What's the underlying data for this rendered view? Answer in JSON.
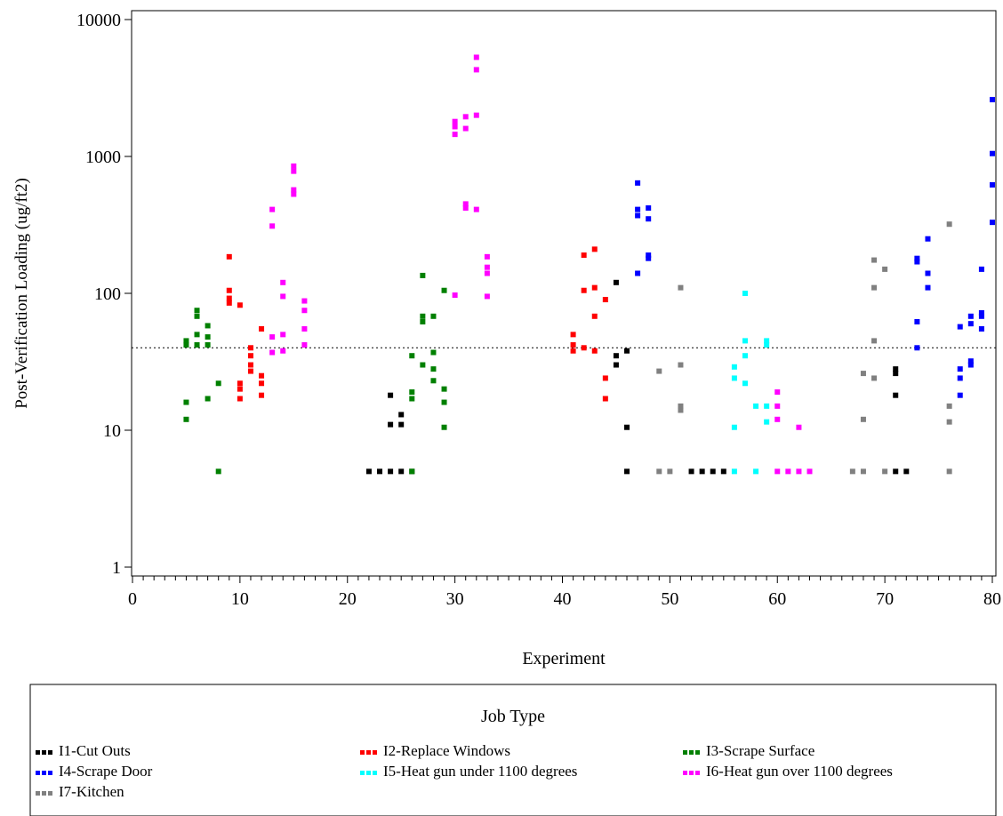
{
  "chart_data": {
    "type": "scatter",
    "title": "",
    "xlabel": "Experiment",
    "ylabel": "Post-Verification Loading (ug/ft2)",
    "xlim": [
      0,
      80
    ],
    "ylim": [
      1,
      10000
    ],
    "yscale": "log",
    "x_ticks": [
      "0",
      "10",
      "20",
      "30",
      "40",
      "50",
      "60",
      "70",
      "80"
    ],
    "y_ticks": [
      "1",
      "10",
      "100",
      "1000",
      "10000"
    ],
    "grid": false,
    "reference_line": {
      "y": 40,
      "style": "dotted"
    },
    "legend": {
      "title": "Job Type",
      "placement": "bottom"
    },
    "series": [
      {
        "name": "I1-Cut Outs",
        "color": "#000000",
        "points": [
          [
            22,
            5
          ],
          [
            23,
            5
          ],
          [
            24,
            5
          ],
          [
            25,
            5
          ],
          [
            26,
            5
          ],
          [
            24,
            18
          ],
          [
            24,
            11
          ],
          [
            25,
            13
          ],
          [
            25,
            11
          ],
          [
            45,
            120
          ],
          [
            45,
            35
          ],
          [
            45,
            30
          ],
          [
            46,
            38
          ],
          [
            46,
            10.5
          ],
          [
            46,
            5
          ],
          [
            52,
            5
          ],
          [
            53,
            5
          ],
          [
            54,
            5
          ],
          [
            55,
            5
          ],
          [
            71,
            28
          ],
          [
            71,
            26
          ],
          [
            71,
            18
          ],
          [
            71,
            5
          ],
          [
            72,
            5
          ]
        ]
      },
      {
        "name": "I2-Replace Windows",
        "color": "#ff0000",
        "points": [
          [
            9,
            185
          ],
          [
            9,
            105
          ],
          [
            9,
            92
          ],
          [
            9,
            85
          ],
          [
            10,
            82
          ],
          [
            10,
            22
          ],
          [
            10,
            20
          ],
          [
            10,
            17
          ],
          [
            11,
            40
          ],
          [
            11,
            35
          ],
          [
            11,
            30
          ],
          [
            11,
            27
          ],
          [
            12,
            55
          ],
          [
            12,
            25
          ],
          [
            12,
            22
          ],
          [
            12,
            18
          ],
          [
            41,
            50
          ],
          [
            41,
            42
          ],
          [
            41,
            38
          ],
          [
            42,
            190
          ],
          [
            42,
            105
          ],
          [
            42,
            40
          ],
          [
            43,
            210
          ],
          [
            43,
            110
          ],
          [
            43,
            68
          ],
          [
            43,
            38
          ],
          [
            44,
            90
          ],
          [
            44,
            24
          ],
          [
            44,
            17
          ]
        ]
      },
      {
        "name": "I3-Scrape Surface",
        "color": "#008000",
        "points": [
          [
            5,
            45
          ],
          [
            5,
            42
          ],
          [
            5,
            16
          ],
          [
            5,
            12
          ],
          [
            6,
            75
          ],
          [
            6,
            68
          ],
          [
            6,
            50
          ],
          [
            6,
            42
          ],
          [
            7,
            58
          ],
          [
            7,
            48
          ],
          [
            7,
            42
          ],
          [
            7,
            17
          ],
          [
            8,
            22
          ],
          [
            8,
            5
          ],
          [
            26,
            35
          ],
          [
            26,
            19
          ],
          [
            26,
            17
          ],
          [
            26,
            5
          ],
          [
            27,
            135
          ],
          [
            27,
            68
          ],
          [
            27,
            62
          ],
          [
            27,
            30
          ],
          [
            28,
            68
          ],
          [
            28,
            37
          ],
          [
            28,
            28
          ],
          [
            28,
            23
          ],
          [
            29,
            105
          ],
          [
            29,
            20
          ],
          [
            29,
            16
          ],
          [
            29,
            10.5
          ]
        ]
      },
      {
        "name": "I4-Scrape Door",
        "color": "#0000ff",
        "points": [
          [
            47,
            640
          ],
          [
            47,
            410
          ],
          [
            47,
            370
          ],
          [
            47,
            140
          ],
          [
            48,
            420
          ],
          [
            48,
            350
          ],
          [
            48,
            190
          ],
          [
            48,
            180
          ],
          [
            73,
            180
          ],
          [
            73,
            170
          ],
          [
            73,
            62
          ],
          [
            73,
            40
          ],
          [
            74,
            250
          ],
          [
            74,
            140
          ],
          [
            74,
            110
          ],
          [
            77,
            57
          ],
          [
            77,
            28
          ],
          [
            77,
            24
          ],
          [
            77,
            18
          ],
          [
            78,
            68
          ],
          [
            78,
            60
          ],
          [
            78,
            32
          ],
          [
            78,
            30
          ],
          [
            79,
            150
          ],
          [
            79,
            72
          ],
          [
            79,
            68
          ],
          [
            79,
            55
          ],
          [
            80,
            2600
          ],
          [
            80,
            1050
          ],
          [
            80,
            620
          ],
          [
            80,
            330
          ]
        ]
      },
      {
        "name": "I5-Heat gun under 1100 degrees",
        "color": "#00ffff",
        "points": [
          [
            56,
            29
          ],
          [
            56,
            24
          ],
          [
            56,
            10.5
          ],
          [
            56,
            5
          ],
          [
            57,
            100
          ],
          [
            57,
            45
          ],
          [
            57,
            35
          ],
          [
            57,
            22
          ],
          [
            58,
            15
          ],
          [
            58,
            5
          ],
          [
            59,
            45
          ],
          [
            59,
            42
          ],
          [
            59,
            15
          ],
          [
            59,
            11.5
          ]
        ]
      },
      {
        "name": "I6-Heat gun over 1100 degrees",
        "color": "#ff00ff",
        "points": [
          [
            13,
            410
          ],
          [
            13,
            310
          ],
          [
            13,
            48
          ],
          [
            13,
            37
          ],
          [
            14,
            120
          ],
          [
            14,
            95
          ],
          [
            14,
            50
          ],
          [
            14,
            38
          ],
          [
            15,
            850
          ],
          [
            15,
            780
          ],
          [
            15,
            570
          ],
          [
            15,
            530
          ],
          [
            16,
            88
          ],
          [
            16,
            75
          ],
          [
            16,
            55
          ],
          [
            16,
            42
          ],
          [
            30,
            1800
          ],
          [
            30,
            1650
          ],
          [
            30,
            1450
          ],
          [
            30,
            97
          ],
          [
            31,
            1950
          ],
          [
            31,
            1600
          ],
          [
            31,
            450
          ],
          [
            31,
            420
          ],
          [
            32,
            5300
          ],
          [
            32,
            4300
          ],
          [
            32,
            2000
          ],
          [
            32,
            410
          ],
          [
            33,
            185
          ],
          [
            33,
            155
          ],
          [
            33,
            140
          ],
          [
            33,
            95
          ],
          [
            60,
            19
          ],
          [
            60,
            15
          ],
          [
            60,
            12
          ],
          [
            60,
            5
          ],
          [
            61,
            5
          ],
          [
            62,
            10.5
          ],
          [
            62,
            5
          ],
          [
            63,
            5
          ]
        ]
      },
      {
        "name": "I7-Kitchen",
        "color": "#808080",
        "points": [
          [
            49,
            27
          ],
          [
            49,
            5
          ],
          [
            50,
            5
          ],
          [
            51,
            110
          ],
          [
            51,
            30
          ],
          [
            51,
            15
          ],
          [
            51,
            14
          ],
          [
            67,
            5
          ],
          [
            68,
            5
          ],
          [
            68,
            26
          ],
          [
            68,
            12
          ],
          [
            69,
            175
          ],
          [
            69,
            110
          ],
          [
            69,
            45
          ],
          [
            69,
            24
          ],
          [
            70,
            150
          ],
          [
            70,
            5
          ],
          [
            76,
            320
          ],
          [
            76,
            15
          ],
          [
            76,
            11.5
          ],
          [
            76,
            5
          ]
        ]
      }
    ]
  }
}
